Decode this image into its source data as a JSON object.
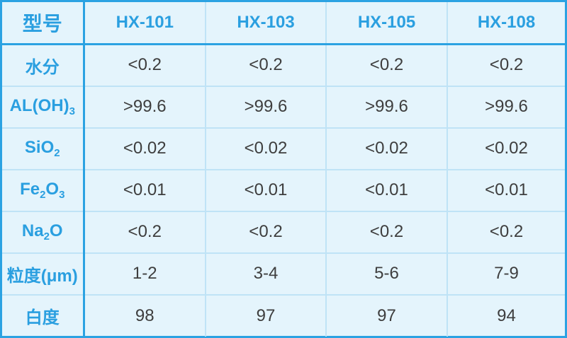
{
  "header": {
    "label": "型号",
    "models": [
      "HX-101",
      "HX-103",
      "HX-105",
      "HX-108"
    ]
  },
  "rows": [
    {
      "label_parts": [
        {
          "t": "水分"
        }
      ],
      "values": [
        "<0.2",
        "<0.2",
        "<0.2",
        "<0.2"
      ]
    },
    {
      "label_parts": [
        {
          "t": "AL(OH)"
        },
        {
          "t": "3",
          "sub": true
        }
      ],
      "values": [
        ">99.6",
        ">99.6",
        ">99.6",
        ">99.6"
      ]
    },
    {
      "label_parts": [
        {
          "t": "SiO"
        },
        {
          "t": "2",
          "sub": true
        }
      ],
      "values": [
        "<0.02",
        "<0.02",
        "<0.02",
        "<0.02"
      ]
    },
    {
      "label_parts": [
        {
          "t": "Fe"
        },
        {
          "t": "2",
          "sub": true
        },
        {
          "t": "O"
        },
        {
          "t": "3",
          "sub": true
        }
      ],
      "values": [
        "<0.01",
        "<0.01",
        "<0.01",
        "<0.01"
      ]
    },
    {
      "label_parts": [
        {
          "t": "Na"
        },
        {
          "t": "2",
          "sub": true
        },
        {
          "t": "O"
        }
      ],
      "values": [
        "<0.2",
        "<0.2",
        "<0.2",
        "<0.2"
      ]
    },
    {
      "label_parts": [
        {
          "t": "粒度(μm)"
        }
      ],
      "values": [
        "1-2",
        "3-4",
        "5-6",
        "7-9"
      ]
    },
    {
      "label_parts": [
        {
          "t": "白度"
        }
      ],
      "values": [
        "98",
        "97",
        "97",
        "94"
      ]
    }
  ],
  "colors": {
    "accent": "#2ba2e2",
    "grid": "#bfe3f6",
    "background": "#e4f4fc",
    "value_text": "#3e3e3e"
  }
}
